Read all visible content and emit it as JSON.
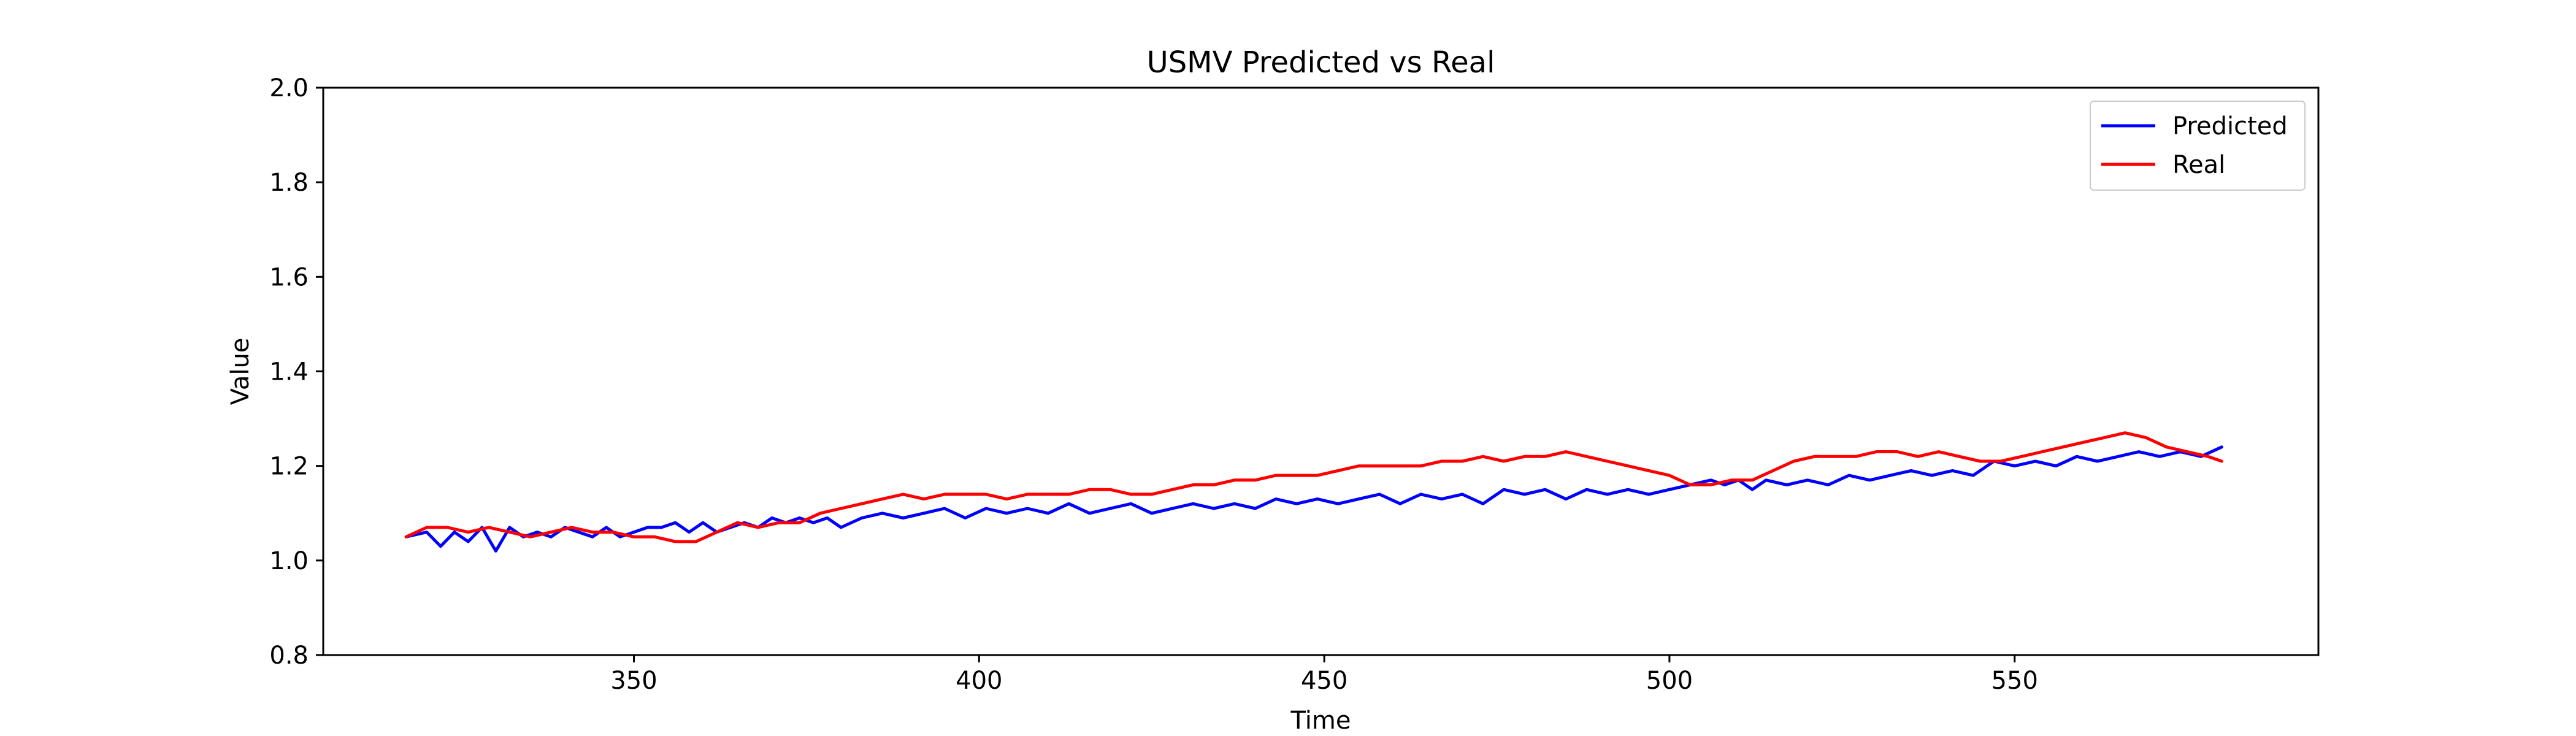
{
  "chart_data": {
    "type": "line",
    "title": "USMV Predicted vs Real",
    "xlabel": "Time",
    "ylabel": "Value",
    "xlim": [
      305,
      594
    ],
    "ylim": [
      0.8,
      2.0
    ],
    "x_ticks": [
      350,
      400,
      450,
      500,
      550
    ],
    "y_ticks": [
      0.8,
      1.0,
      1.2,
      1.4,
      1.6,
      1.8,
      2.0
    ],
    "y_tick_labels": [
      "0.8",
      "1.0",
      "1.2",
      "1.4",
      "1.6",
      "1.8",
      "2.0"
    ],
    "grid": false,
    "legend_position": "upper right",
    "series": [
      {
        "name": "Predicted",
        "color": "#0000ff",
        "x": [
          317,
          320,
          322,
          324,
          326,
          328,
          330,
          332,
          334,
          336,
          338,
          340,
          342,
          344,
          346,
          348,
          350,
          352,
          354,
          356,
          358,
          360,
          362,
          364,
          366,
          368,
          370,
          372,
          374,
          376,
          378,
          380,
          383,
          386,
          389,
          392,
          395,
          398,
          401,
          404,
          407,
          410,
          413,
          416,
          419,
          422,
          425,
          428,
          431,
          434,
          437,
          440,
          443,
          446,
          449,
          452,
          455,
          458,
          461,
          464,
          467,
          470,
          473,
          476,
          479,
          482,
          485,
          488,
          491,
          494,
          497,
          500,
          503,
          506,
          508,
          510,
          512,
          514,
          517,
          520,
          523,
          526,
          529,
          532,
          535,
          538,
          541,
          544,
          547,
          550,
          553,
          556,
          559,
          562,
          565,
          568,
          571,
          574,
          577,
          580
        ],
        "values": [
          1.05,
          1.06,
          1.03,
          1.06,
          1.04,
          1.07,
          1.02,
          1.07,
          1.05,
          1.06,
          1.05,
          1.07,
          1.06,
          1.05,
          1.07,
          1.05,
          1.06,
          1.07,
          1.07,
          1.08,
          1.06,
          1.08,
          1.06,
          1.07,
          1.08,
          1.07,
          1.09,
          1.08,
          1.09,
          1.08,
          1.09,
          1.07,
          1.09,
          1.1,
          1.09,
          1.1,
          1.11,
          1.09,
          1.11,
          1.1,
          1.11,
          1.1,
          1.12,
          1.1,
          1.11,
          1.12,
          1.1,
          1.11,
          1.12,
          1.11,
          1.12,
          1.11,
          1.13,
          1.12,
          1.13,
          1.12,
          1.13,
          1.14,
          1.12,
          1.14,
          1.13,
          1.14,
          1.12,
          1.15,
          1.14,
          1.15,
          1.13,
          1.15,
          1.14,
          1.15,
          1.14,
          1.15,
          1.16,
          1.17,
          1.16,
          1.17,
          1.15,
          1.17,
          1.16,
          1.17,
          1.16,
          1.18,
          1.17,
          1.18,
          1.19,
          1.18,
          1.19,
          1.18,
          1.21,
          1.2,
          1.21,
          1.2,
          1.22,
          1.21,
          1.22,
          1.23,
          1.22,
          1.23,
          1.22,
          1.24
        ]
      },
      {
        "name": "Real",
        "color": "#ff0000",
        "x": [
          317,
          320,
          323,
          326,
          329,
          332,
          335,
          338,
          341,
          344,
          347,
          350,
          353,
          356,
          359,
          362,
          365,
          368,
          371,
          374,
          377,
          380,
          383,
          386,
          389,
          392,
          395,
          398,
          401,
          404,
          407,
          410,
          413,
          416,
          419,
          422,
          425,
          428,
          431,
          434,
          437,
          440,
          443,
          446,
          449,
          452,
          455,
          458,
          461,
          464,
          467,
          470,
          473,
          476,
          479,
          482,
          485,
          488,
          491,
          494,
          497,
          500,
          503,
          506,
          509,
          512,
          515,
          518,
          521,
          524,
          527,
          530,
          533,
          536,
          539,
          542,
          545,
          548,
          551,
          554,
          557,
          560,
          563,
          566,
          569,
          572,
          575,
          578,
          580
        ],
        "values": [
          1.05,
          1.07,
          1.07,
          1.06,
          1.07,
          1.06,
          1.05,
          1.06,
          1.07,
          1.06,
          1.06,
          1.05,
          1.05,
          1.04,
          1.04,
          1.06,
          1.08,
          1.07,
          1.08,
          1.08,
          1.1,
          1.11,
          1.12,
          1.13,
          1.14,
          1.13,
          1.14,
          1.14,
          1.14,
          1.13,
          1.14,
          1.14,
          1.14,
          1.15,
          1.15,
          1.14,
          1.14,
          1.15,
          1.16,
          1.16,
          1.17,
          1.17,
          1.18,
          1.18,
          1.18,
          1.19,
          1.2,
          1.2,
          1.2,
          1.2,
          1.21,
          1.21,
          1.22,
          1.21,
          1.22,
          1.22,
          1.23,
          1.22,
          1.21,
          1.2,
          1.19,
          1.18,
          1.16,
          1.16,
          1.17,
          1.17,
          1.19,
          1.21,
          1.22,
          1.22,
          1.22,
          1.23,
          1.23,
          1.22,
          1.23,
          1.22,
          1.21,
          1.21,
          1.22,
          1.23,
          1.24,
          1.25,
          1.26,
          1.27,
          1.26,
          1.24,
          1.23,
          1.22,
          1.21
        ]
      }
    ]
  }
}
